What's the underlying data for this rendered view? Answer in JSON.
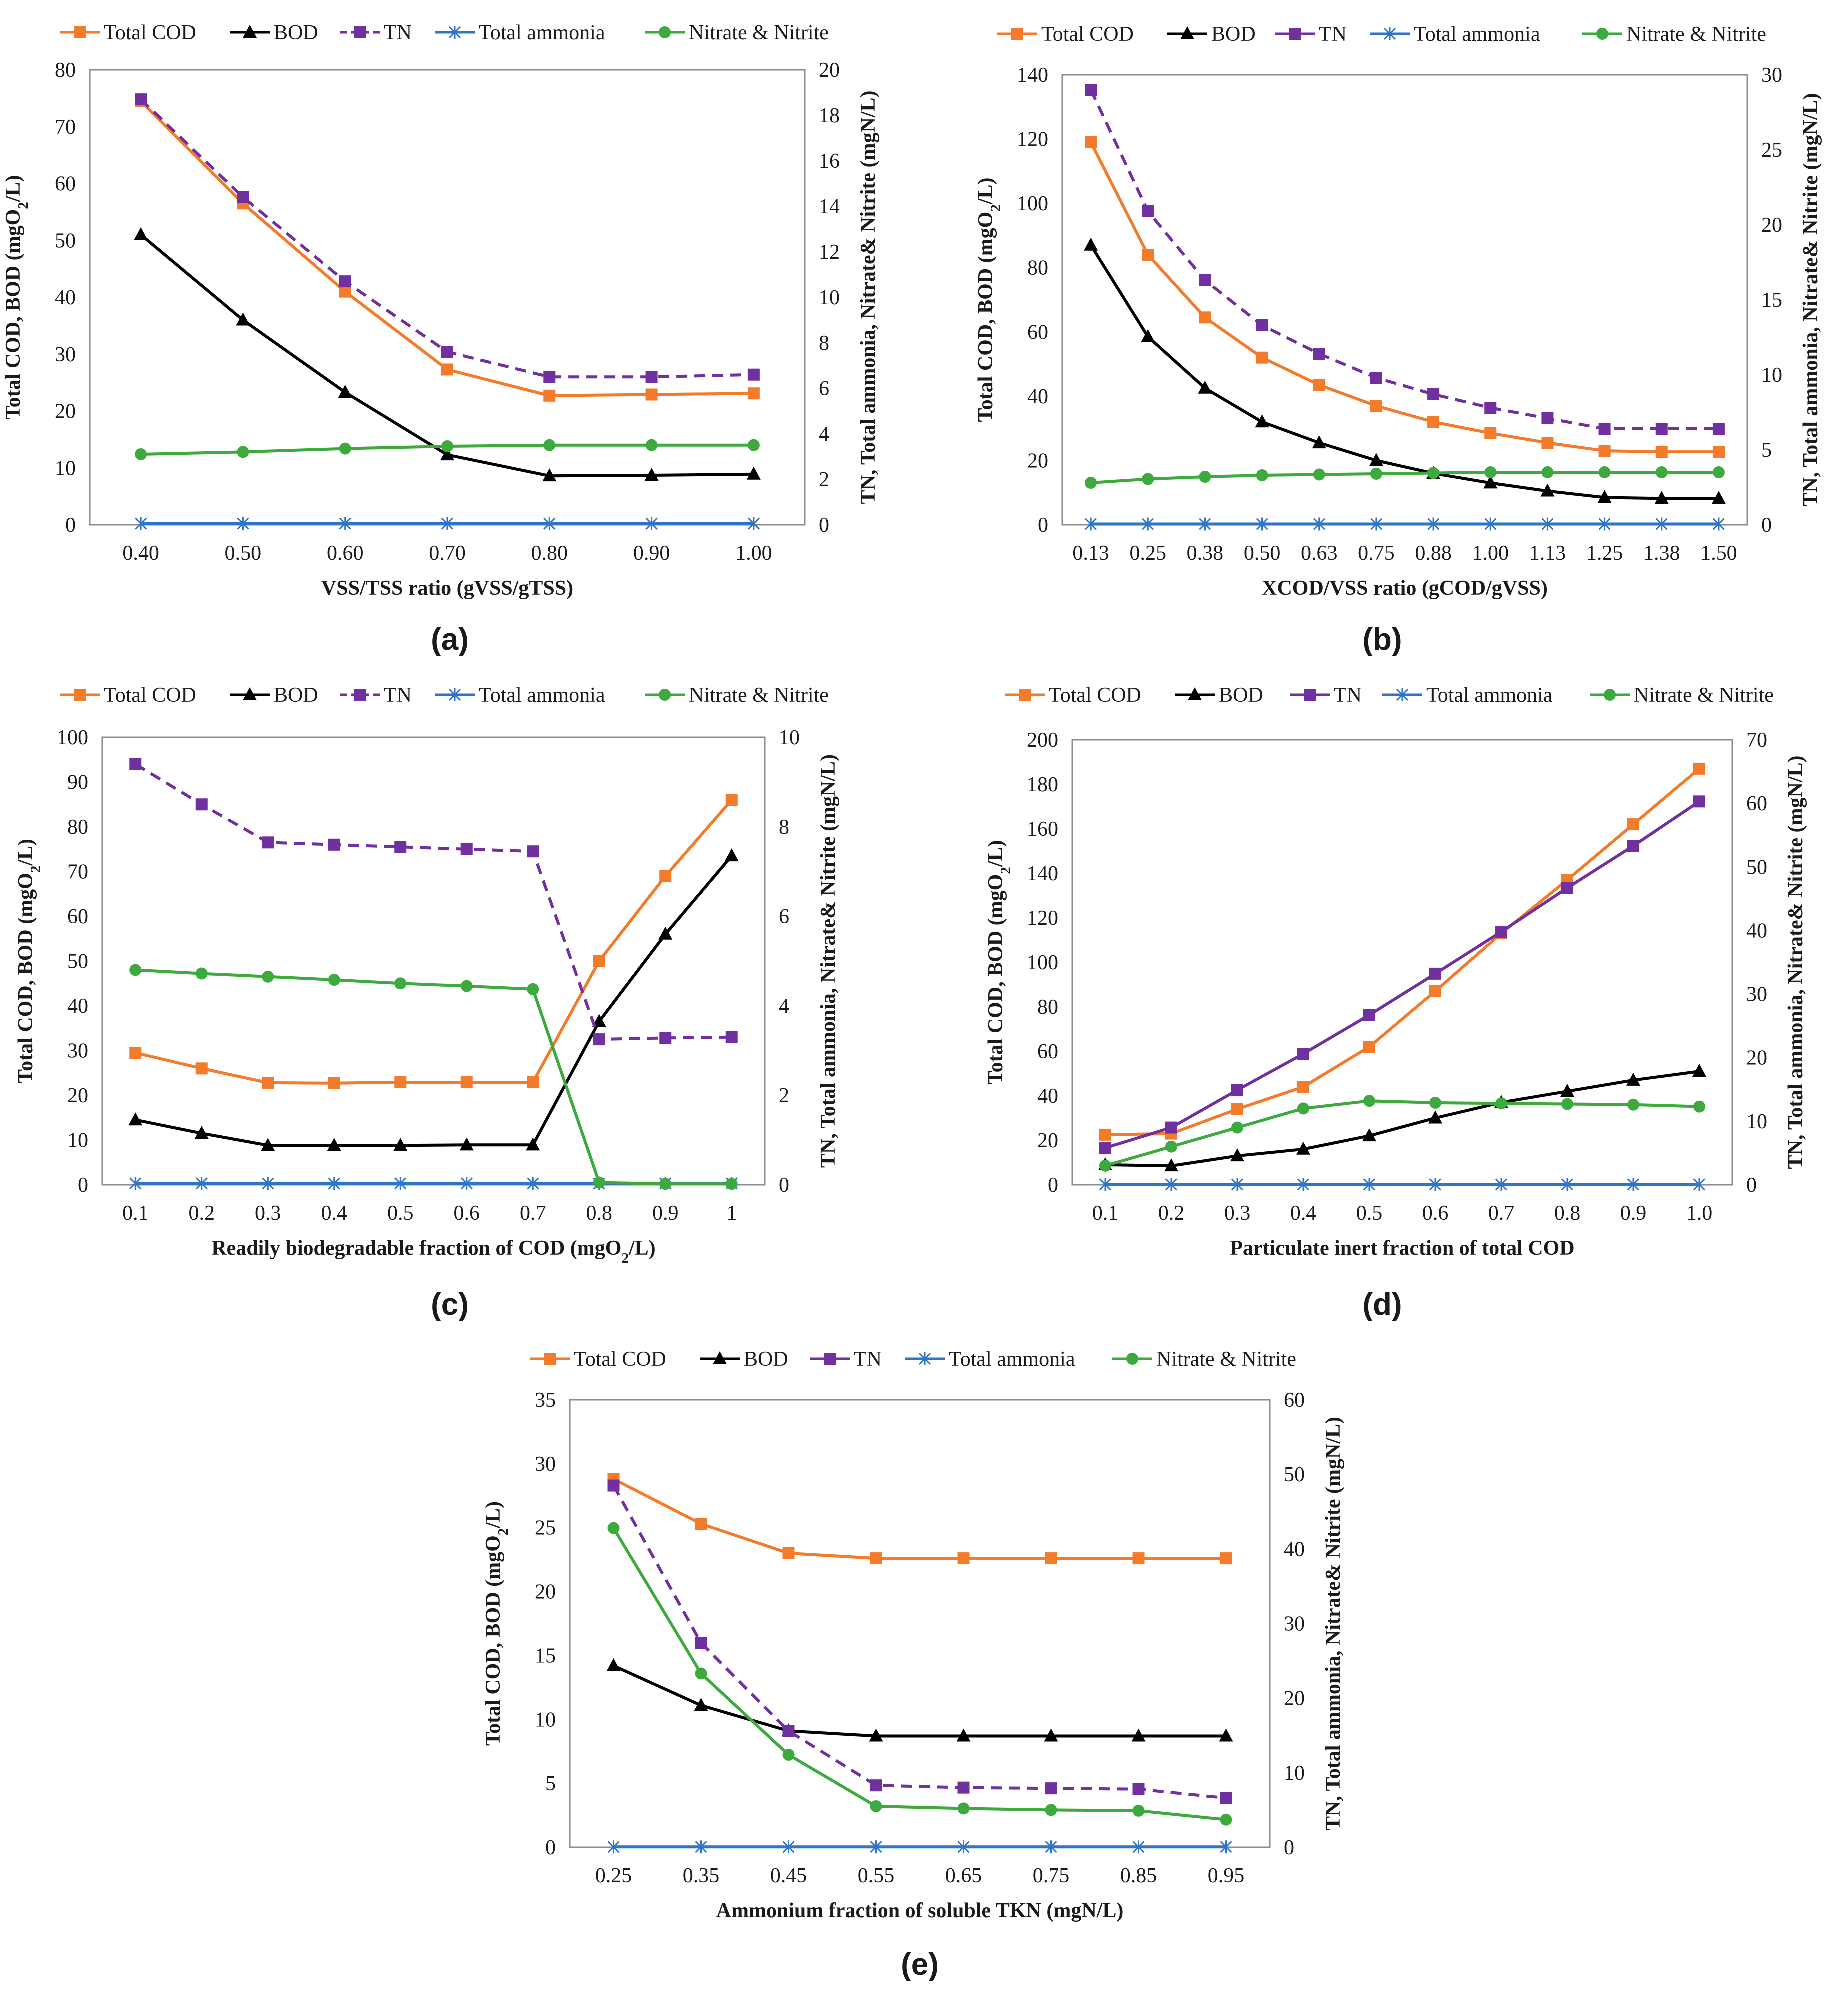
{
  "figure": {
    "panel_labels": [
      "(a)",
      "(b)",
      "(c)",
      "(d)",
      "(e)"
    ]
  },
  "legend_labels": {
    "total_cod": "Total COD",
    "bod": "BOD",
    "tn": "TN",
    "total_ammonia": "Total ammonia",
    "nitrate_nitrite": "Nitrate & Nitrite"
  },
  "colors": {
    "total_cod": "#F47B2A",
    "bod": "#000000",
    "tn": "#7030A0",
    "total_ammonia": "#2E75C7",
    "nitrate_nitrite": "#3DAA3D"
  },
  "chart_data": [
    {
      "id": "a",
      "type": "line",
      "panel_label": "(a)",
      "xlabel": "VSS/TSS ratio (gVSS/gTSS)",
      "ylabel": "Total COD, BOD (mgO2/L)",
      "y2label": "TN, Total ammonia, Nitrate& Nitrite (mgN/L)",
      "categories": [
        "0.40",
        "0.50",
        "0.60",
        "0.70",
        "0.80",
        "0.90",
        "1.00"
      ],
      "ylim": [
        0,
        80
      ],
      "yticks": [
        0,
        10,
        20,
        30,
        40,
        50,
        60,
        70,
        80
      ],
      "y2lim": [
        0,
        20
      ],
      "y2ticks": [
        0,
        2,
        4,
        6,
        8,
        10,
        12,
        14,
        16,
        18,
        20
      ],
      "series": [
        {
          "key": "total_cod",
          "name": "Total COD",
          "axis": "left",
          "values": [
            74.5,
            56.5,
            41,
            27.3,
            22.7,
            22.9,
            23.1
          ]
        },
        {
          "key": "bod",
          "name": "BOD",
          "axis": "left",
          "values": [
            51,
            36,
            23.3,
            12.3,
            8.6,
            8.7,
            8.9
          ]
        },
        {
          "key": "tn",
          "name": "TN",
          "axis": "right",
          "values": [
            18.7,
            14.4,
            10.7,
            7.6,
            6.5,
            6.5,
            6.6
          ]
        },
        {
          "key": "total_ammonia",
          "name": "Total ammonia",
          "axis": "right",
          "values": [
            0.05,
            0.05,
            0.05,
            0.05,
            0.05,
            0.05,
            0.05
          ]
        },
        {
          "key": "nitrate_nitrite",
          "name": "Nitrate & Nitrite",
          "axis": "right",
          "values": [
            3.1,
            3.2,
            3.35,
            3.45,
            3.5,
            3.5,
            3.5
          ]
        }
      ]
    },
    {
      "id": "b",
      "type": "line",
      "panel_label": "(b)",
      "xlabel": "XCOD/VSS ratio (gCOD/gVSS)",
      "ylabel": "Total COD, BOD (mgO2/L)",
      "y2label": "TN, Total ammonia, Nitrate& Nitrite (mgN/L)",
      "categories": [
        "0.13",
        "0.25",
        "0.38",
        "0.50",
        "0.63",
        "0.75",
        "0.88",
        "1.00",
        "1.13",
        "1.25",
        "1.38",
        "1.50"
      ],
      "ylim": [
        0,
        140
      ],
      "yticks": [
        0,
        20,
        40,
        60,
        80,
        100,
        120,
        140
      ],
      "y2lim": [
        0,
        30
      ],
      "y2ticks": [
        0,
        5,
        10,
        15,
        20,
        25,
        30
      ],
      "series": [
        {
          "key": "total_cod",
          "name": "Total COD",
          "axis": "left",
          "values": [
            119,
            84,
            64.5,
            52,
            43.5,
            37,
            32,
            28.5,
            25.5,
            23,
            22.7,
            22.7
          ]
        },
        {
          "key": "bod",
          "name": "BOD",
          "axis": "left",
          "values": [
            87,
            58.5,
            42.5,
            32,
            25.5,
            20,
            16,
            13,
            10.5,
            8.5,
            8.2,
            8.2
          ]
        },
        {
          "key": "tn",
          "name": "TN",
          "axis": "right",
          "values": [
            29,
            20.9,
            16.3,
            13.3,
            11.4,
            9.8,
            8.7,
            7.8,
            7.1,
            6.4,
            6.4,
            6.4
          ]
        },
        {
          "key": "total_ammonia",
          "name": "Total ammonia",
          "axis": "right",
          "values": [
            0.05,
            0.05,
            0.05,
            0.05,
            0.05,
            0.05,
            0.05,
            0.05,
            0.05,
            0.05,
            0.05,
            0.05
          ]
        },
        {
          "key": "nitrate_nitrite",
          "name": "Nitrate & Nitrite",
          "axis": "right",
          "values": [
            2.8,
            3.05,
            3.2,
            3.3,
            3.35,
            3.4,
            3.45,
            3.5,
            3.5,
            3.5,
            3.5,
            3.5
          ]
        }
      ]
    },
    {
      "id": "c",
      "type": "line",
      "panel_label": "(c)",
      "xlabel": "Readily biodegradable fraction of COD (mgO2/L)",
      "ylabel": "Total COD, BOD (mgO2/L)",
      "y2label": "TN, Total ammonia, Nitrate& Nitrite (mgN/L)",
      "categories": [
        "0.1",
        "0.2",
        "0.3",
        "0.4",
        "0.5",
        "0.6",
        "0.7",
        "0.8",
        "0.9",
        "1"
      ],
      "ylim": [
        0,
        100
      ],
      "yticks": [
        0,
        10,
        20,
        30,
        40,
        50,
        60,
        70,
        80,
        90,
        100
      ],
      "y2lim": [
        0,
        10
      ],
      "y2ticks": [
        0,
        2,
        4,
        6,
        8,
        10
      ],
      "series": [
        {
          "key": "total_cod",
          "name": "Total COD",
          "axis": "left",
          "values": [
            29.5,
            26,
            22.8,
            22.7,
            22.9,
            22.9,
            22.9,
            50,
            69,
            86
          ]
        },
        {
          "key": "bod",
          "name": "BOD",
          "axis": "left",
          "values": [
            14.5,
            11.5,
            8.8,
            8.8,
            8.8,
            8.9,
            8.9,
            36.5,
            56,
            73.5
          ]
        },
        {
          "key": "tn",
          "name": "TN",
          "axis": "right",
          "values": [
            9.4,
            8.5,
            7.65,
            7.6,
            7.55,
            7.5,
            7.45,
            3.25,
            3.28,
            3.3
          ]
        },
        {
          "key": "total_ammonia",
          "name": "Total ammonia",
          "axis": "right",
          "values": [
            0.03,
            0.03,
            0.03,
            0.03,
            0.03,
            0.03,
            0.03,
            0.03,
            0.03,
            0.03
          ]
        },
        {
          "key": "nitrate_nitrite",
          "name": "Nitrate & Nitrite",
          "axis": "right",
          "values": [
            4.8,
            4.72,
            4.65,
            4.58,
            4.5,
            4.44,
            4.37,
            0.05,
            0.02,
            0.02
          ]
        }
      ]
    },
    {
      "id": "d",
      "type": "line",
      "panel_label": "(d)",
      "xlabel": "Particulate inert fraction of total COD",
      "ylabel": "Total COD, BOD (mgO2/L)",
      "y2label": "TN, Total ammonia, Nitrate& Nitrite (mgN/L)",
      "categories": [
        "0.1",
        "0.2",
        "0.3",
        "0.4",
        "0.5",
        "0.6",
        "0.7",
        "0.8",
        "0.9",
        "1.0"
      ],
      "ylim": [
        0,
        200
      ],
      "yticks": [
        0,
        20,
        40,
        60,
        80,
        100,
        120,
        140,
        160,
        180,
        200
      ],
      "y2lim": [
        0,
        70
      ],
      "y2ticks": [
        0,
        10,
        20,
        30,
        40,
        50,
        60,
        70
      ],
      "series": [
        {
          "key": "total_cod",
          "name": "Total COD",
          "axis": "left",
          "values": [
            22.5,
            23,
            34,
            44,
            62,
            87,
            113,
            137,
            162,
            187
          ]
        },
        {
          "key": "bod",
          "name": "BOD",
          "axis": "left",
          "values": [
            9,
            8.5,
            13,
            16,
            22,
            30,
            37,
            42,
            47,
            51
          ]
        },
        {
          "key": "tn",
          "name": "TN",
          "axis": "right",
          "values": [
            5.8,
            9,
            14.9,
            20.6,
            26.7,
            33.2,
            39.8,
            46.7,
            53.3,
            60.3
          ]
        },
        {
          "key": "total_ammonia",
          "name": "Total ammonia",
          "axis": "right",
          "values": [
            0.05,
            0.05,
            0.05,
            0.05,
            0.05,
            0.05,
            0.05,
            0.05,
            0.05,
            0.05
          ]
        },
        {
          "key": "nitrate_nitrite",
          "name": "Nitrate & Nitrite",
          "axis": "right",
          "values": [
            3,
            6,
            9,
            12,
            13.2,
            12.9,
            12.8,
            12.7,
            12.6,
            12.3
          ]
        }
      ]
    },
    {
      "id": "e",
      "type": "line",
      "panel_label": "(e)",
      "xlabel": "Ammonium fraction of soluble TKN (mgN/L)",
      "ylabel": "Total COD, BOD (mgO2/L)",
      "y2label": "TN, Total ammonia, Nitrate& Nitrite (mgN/L)",
      "categories": [
        "0.25",
        "0.35",
        "0.45",
        "0.55",
        "0.65",
        "0.75",
        "0.85",
        "0.95"
      ],
      "ylim": [
        0,
        35
      ],
      "yticks": [
        0,
        5,
        10,
        15,
        20,
        25,
        30,
        35
      ],
      "y2lim": [
        0,
        60
      ],
      "y2ticks": [
        0,
        10,
        20,
        30,
        40,
        50,
        60
      ],
      "series": [
        {
          "key": "total_cod",
          "name": "Total COD",
          "axis": "left",
          "values": [
            28.8,
            25.3,
            23,
            22.6,
            22.6,
            22.6,
            22.6,
            22.6
          ]
        },
        {
          "key": "bod",
          "name": "BOD",
          "axis": "left",
          "values": [
            14.2,
            11.1,
            9.1,
            8.7,
            8.7,
            8.7,
            8.7,
            8.7
          ]
        },
        {
          "key": "tn",
          "name": "TN",
          "axis": "right",
          "values": [
            48.5,
            27.4,
            15.6,
            8.3,
            8,
            7.9,
            7.8,
            6.6
          ]
        },
        {
          "key": "total_ammonia",
          "name": "Total ammonia",
          "axis": "right",
          "values": [
            0.05,
            0.05,
            0.05,
            0.05,
            0.05,
            0.05,
            0.05,
            0.05
          ]
        },
        {
          "key": "nitrate_nitrite",
          "name": "Nitrate & Nitrite",
          "axis": "right",
          "values": [
            42.8,
            23.3,
            12.4,
            5.5,
            5.2,
            5,
            4.9,
            3.7
          ]
        }
      ]
    }
  ]
}
